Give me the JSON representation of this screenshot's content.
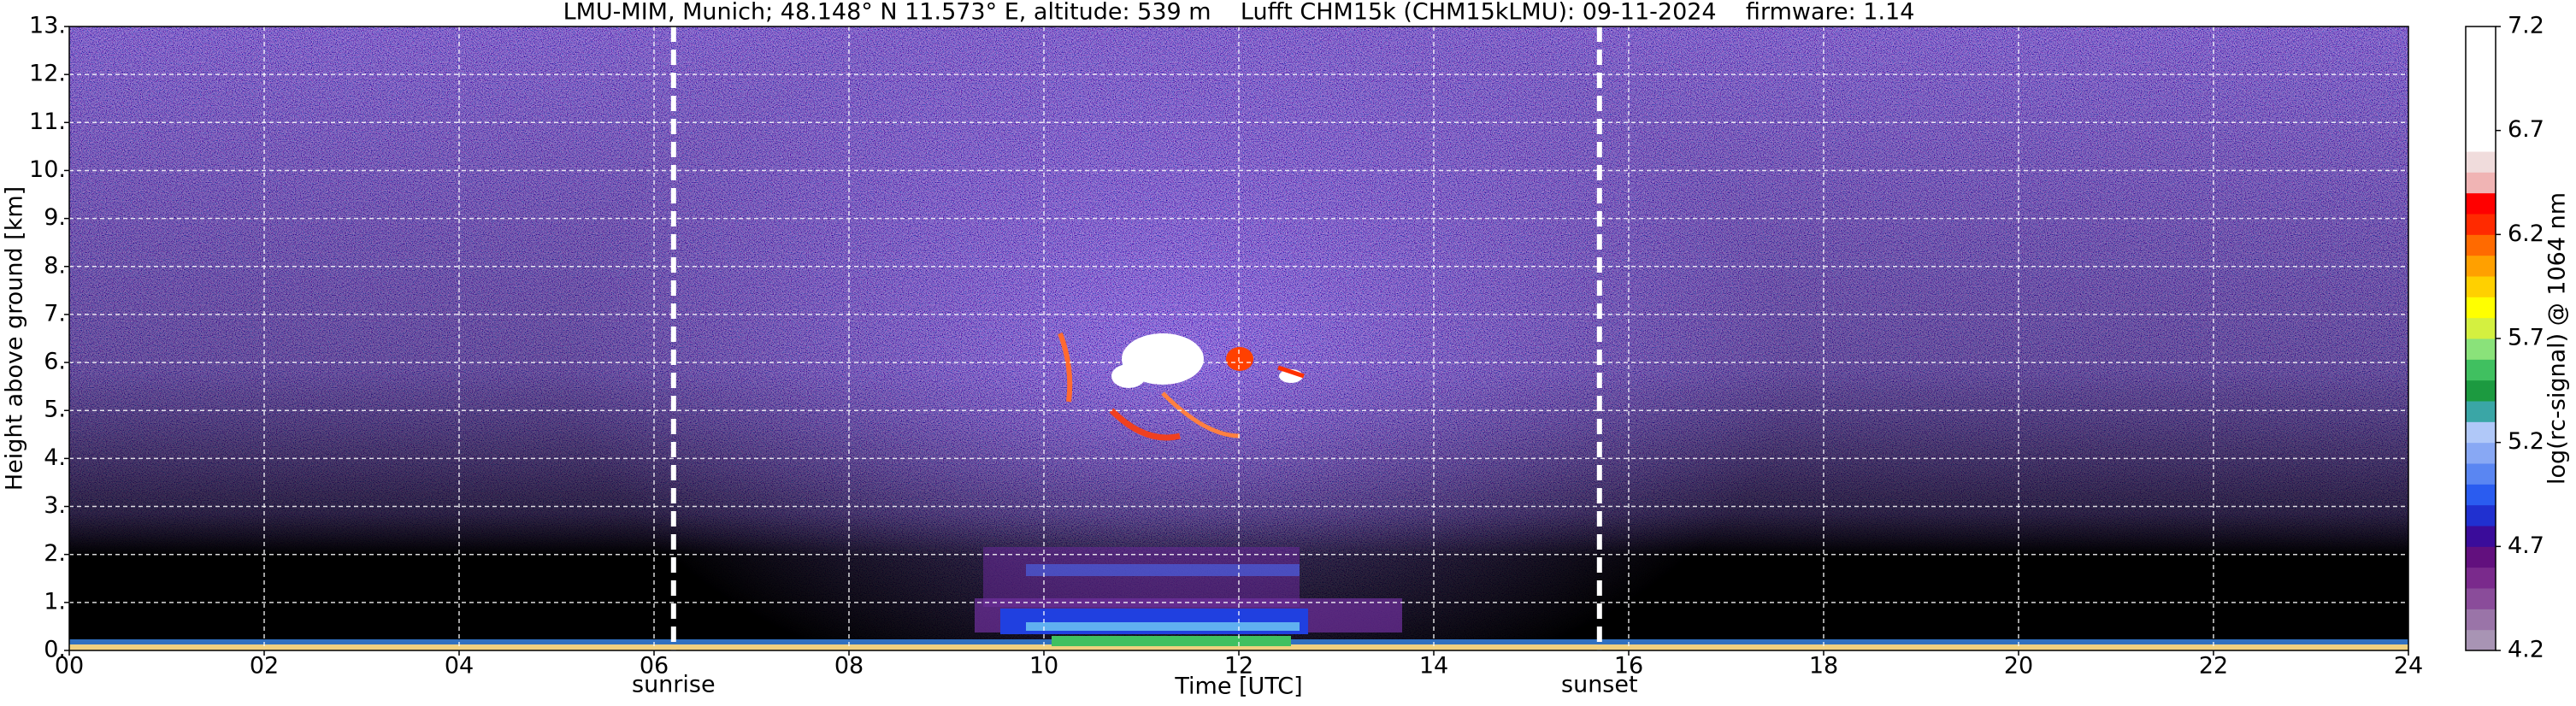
{
  "chart_data": {
    "type": "heatmap",
    "title": "LMU-MIM, Munich; 48.148° N 11.573° E, altitude: 539 m    Lufft CHM15k (CHM15kLMU): 09-11-2024    firmware: 1.14",
    "x_label": "Time [UTC]",
    "y_label": "Height above ground [km]",
    "xlim": [
      0,
      24
    ],
    "xticks": [
      {
        "value": 0,
        "label": "00"
      },
      {
        "value": 2,
        "label": "02"
      },
      {
        "value": 4,
        "label": "04"
      },
      {
        "value": 6,
        "label": "06"
      },
      {
        "value": 8,
        "label": "08"
      },
      10,
      12,
      14,
      16,
      18,
      20,
      22,
      24
    ],
    "ylim": [
      0,
      13
    ],
    "yticks": [
      {
        "value": 0,
        "label": "0."
      },
      {
        "value": 1,
        "label": "1."
      },
      {
        "value": 2,
        "label": "2."
      },
      {
        "value": 3,
        "label": "3."
      },
      {
        "value": 4,
        "label": "4."
      },
      {
        "value": 5,
        "label": "5."
      },
      {
        "value": 6,
        "label": "6."
      },
      {
        "value": 7,
        "label": "7."
      },
      {
        "value": 8,
        "label": "8."
      },
      {
        "value": 9,
        "label": "9."
      },
      {
        "value": 10,
        "label": "10."
      },
      {
        "value": 11,
        "label": "11."
      },
      {
        "value": 12,
        "label": "12."
      },
      {
        "value": 13,
        "label": "13."
      }
    ],
    "grid": true,
    "colorbar": {
      "label": "log(rc-signal) @ 1064 nm",
      "lim": [
        4.2,
        7.2
      ],
      "ticks": [
        4.2,
        4.7,
        5.2,
        5.7,
        6.2,
        6.7,
        7.2
      ],
      "colors": [
        "#a894b4",
        "#9a74a8",
        "#8a4c9a",
        "#7a2a8c",
        "#62107e",
        "#3a0c9a",
        "#2030d0",
        "#2a5cf0",
        "#5a86f2",
        "#88a8f4",
        "#b0c8f8",
        "#3aa6a6",
        "#1c9a40",
        "#40c060",
        "#8ae27a",
        "#d4f040",
        "#ffff00",
        "#ffd000",
        "#ffa000",
        "#ff6a00",
        "#ff2a00",
        "#ff0000",
        "#f0b4b4",
        "#f0dcdc",
        "#ffffff",
        "#ffffff",
        "#ffffff",
        "#ffffff",
        "#ffffff",
        "#ffffff"
      ]
    },
    "vlines": [
      {
        "x": 6.2,
        "label": "sunrise"
      },
      {
        "x": 15.7,
        "label": "sunset"
      }
    ]
  }
}
